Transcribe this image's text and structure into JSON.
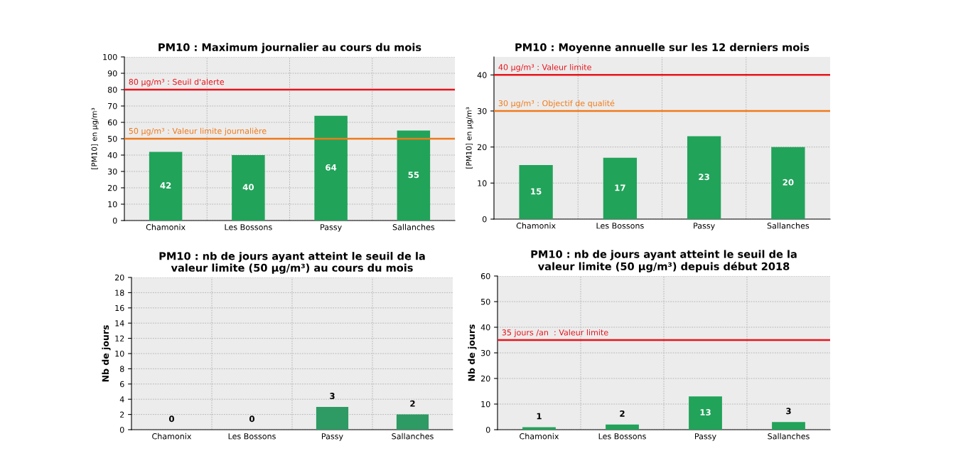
{
  "chart_data": [
    {
      "type": "bar",
      "title": "PM10 : Maximum journalier au cours du mois",
      "ylabel": "[PM10] en µg/m³",
      "categories": [
        "Chamonix",
        "Les Bossons",
        "Passy",
        "Sallanches"
      ],
      "values": [
        42,
        40,
        64,
        55
      ],
      "color": "#21a35a",
      "ylim": [
        0,
        100
      ],
      "yticks": [
        0,
        10,
        20,
        30,
        40,
        50,
        60,
        70,
        80,
        90,
        100
      ],
      "grid": true,
      "data_labels": true,
      "ref_lines": [
        {
          "axis": "y",
          "value": 80,
          "label": "80 µg/m³ : Seuil d'alerte",
          "color": "#e8141c"
        },
        {
          "axis": "y",
          "value": 50,
          "label": "50 µg/m³ : Valeur limite journalière",
          "color": "#f07a1a"
        }
      ]
    },
    {
      "type": "bar",
      "title": "PM10 : Moyenne annuelle sur les 12 derniers mois",
      "ylabel": "[PM10] en µg/m³",
      "categories": [
        "Chamonix",
        "Les Bossons",
        "Passy",
        "Sallanches"
      ],
      "values": [
        15,
        17,
        23,
        20
      ],
      "color": "#21a35a",
      "ylim": [
        0,
        45
      ],
      "yticks": [
        0,
        10,
        20,
        30,
        40
      ],
      "grid": true,
      "data_labels": true,
      "ref_lines": [
        {
          "axis": "y",
          "value": 40,
          "label": "40 µg/m³ : Valeur limite",
          "color": "#e8141c"
        },
        {
          "axis": "y",
          "value": 30,
          "label": "30 µg/m³ : Objectif de qualité",
          "color": "#f07a1a"
        }
      ]
    },
    {
      "type": "bar",
      "title": "PM10 : nb de jours ayant atteint le seuil de la\nvaleur limite (50 µg/m³) au cours du mois",
      "ylabel": "Nb de jours",
      "categories": [
        "Chamonix",
        "Les Bossons",
        "Passy",
        "Sallanches"
      ],
      "values": [
        0,
        0,
        3,
        2
      ],
      "color": "#2e9a64",
      "ylim": [
        0,
        20
      ],
      "yticks": [
        0,
        2,
        4,
        6,
        8,
        10,
        12,
        14,
        16,
        18,
        20
      ],
      "grid": true,
      "data_labels": true
    },
    {
      "type": "bar",
      "title": "PM10 : nb de jours ayant atteint le seuil de la\nvaleur limite (50 µg/m³) depuis début 2018",
      "ylabel": "Nb de jours",
      "categories": [
        "Chamonix",
        "Les Bossons",
        "Passy",
        "Sallanches"
      ],
      "values": [
        1,
        2,
        13,
        3
      ],
      "color": "#21a35a",
      "ylim": [
        0,
        60
      ],
      "yticks": [
        0,
        10,
        20,
        30,
        40,
        50,
        60
      ],
      "grid": true,
      "data_labels": true,
      "ref_lines": [
        {
          "axis": "y",
          "value": 35,
          "label": "35 jours /an  : Valeur limite",
          "color": "#e8141c"
        }
      ]
    }
  ]
}
